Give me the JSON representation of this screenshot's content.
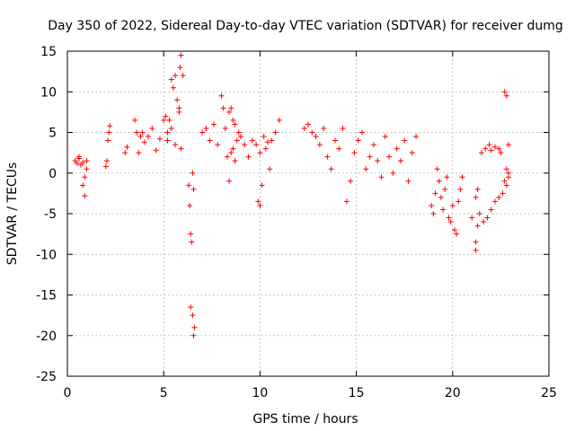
{
  "chart_data": {
    "type": "scatter",
    "title": "Day 350 of 2022, Sidereal Day-to-day VTEC variation (SDTVAR) for receiver dumg",
    "xlabel": "GPS time / hours",
    "ylabel": "SDTVAR / TECUs",
    "xlim": [
      0,
      25
    ],
    "ylim": [
      -25,
      15
    ],
    "xticks": [
      0,
      5,
      10,
      15,
      20,
      25
    ],
    "yticks": [
      15,
      10,
      5,
      0,
      -5,
      -10,
      -15,
      -20,
      -25
    ],
    "grid": true,
    "marker": "+",
    "series": [
      {
        "name": "SDTVAR",
        "color": "#ff0000",
        "x": [
          0.4,
          0.5,
          0.6,
          0.7,
          0.8,
          0.9,
          1.0,
          0.6,
          0.8,
          0.9,
          1.0,
          2.0,
          2.05,
          2.1,
          2.15,
          2.2,
          3.0,
          3.1,
          3.5,
          3.6,
          3.7,
          3.8,
          3.9,
          4.0,
          4.2,
          4.4,
          4.6,
          4.8,
          5.0,
          5.1,
          5.2,
          5.3,
          5.4,
          5.5,
          5.6,
          5.7,
          5.8,
          5.9,
          6.0,
          5.2,
          5.4,
          5.6,
          5.8,
          5.85,
          5.9,
          6.3,
          6.35,
          6.4,
          6.45,
          6.5,
          6.55,
          6.6,
          6.4,
          6.5,
          6.55,
          7.0,
          7.2,
          7.4,
          7.6,
          7.8,
          8.0,
          8.1,
          8.2,
          8.3,
          8.4,
          8.5,
          8.6,
          8.7,
          8.8,
          8.9,
          9.0,
          9.2,
          9.4,
          9.6,
          9.8,
          10.0,
          10.2,
          10.4,
          10.6,
          10.8,
          11.0,
          8.4,
          8.5,
          8.6,
          8.7,
          9.9,
          10.0,
          10.1,
          10.3,
          10.5,
          12.3,
          12.5,
          12.7,
          12.9,
          13.1,
          13.3,
          13.5,
          13.7,
          13.9,
          14.1,
          14.3,
          14.5,
          14.7,
          14.9,
          15.1,
          15.3,
          15.5,
          15.7,
          15.9,
          16.1,
          16.3,
          16.5,
          16.7,
          16.9,
          17.1,
          17.3,
          17.5,
          17.7,
          17.9,
          18.1,
          18.9,
          19.0,
          19.1,
          19.2,
          19.3,
          19.4,
          19.5,
          19.6,
          19.7,
          19.8,
          19.9,
          20.0,
          20.1,
          20.2,
          20.3,
          20.4,
          20.5,
          21.0,
          21.2,
          21.4,
          21.6,
          21.8,
          22.0,
          22.2,
          22.4,
          22.6,
          22.8,
          22.9,
          21.2,
          21.3,
          22.7,
          22.8,
          22.9,
          21.2,
          21.3,
          21.5,
          21.7,
          21.9,
          22.0,
          22.2,
          22.4,
          22.5,
          22.7,
          22.8,
          22.9
        ],
        "y": [
          1.5,
          1.2,
          1.8,
          1.0,
          1.3,
          -0.5,
          0.5,
          2.0,
          -1.5,
          -2.8,
          1.5,
          0.8,
          1.5,
          4.0,
          5.0,
          5.8,
          2.5,
          3.2,
          6.5,
          5.0,
          2.5,
          4.5,
          5.0,
          3.8,
          4.5,
          5.5,
          2.8,
          4.2,
          6.5,
          7.0,
          5.0,
          6.5,
          11.5,
          10.5,
          12.0,
          9.0,
          8.0,
          14.5,
          12.0,
          4.0,
          5.5,
          3.5,
          7.5,
          13.0,
          3.0,
          -1.5,
          -4.0,
          -7.5,
          -8.5,
          -17.5,
          -20.0,
          -19.0,
          -16.5,
          0.0,
          -2.0,
          5.0,
          5.5,
          4.0,
          6.0,
          3.5,
          9.5,
          8.0,
          5.5,
          2.0,
          -1.0,
          2.5,
          3.0,
          1.5,
          4.0,
          5.0,
          4.5,
          3.5,
          2.0,
          4.0,
          3.5,
          2.5,
          4.5,
          3.8,
          4.0,
          5.0,
          6.5,
          7.5,
          8.0,
          6.5,
          6.0,
          -3.5,
          -4.0,
          -1.5,
          3.0,
          0.5,
          5.5,
          6.0,
          5.0,
          4.5,
          3.5,
          5.5,
          2.0,
          0.5,
          4.0,
          3.0,
          5.5,
          -3.5,
          -1.0,
          2.5,
          4.0,
          5.0,
          0.5,
          2.0,
          3.5,
          1.5,
          -0.5,
          4.5,
          2.0,
          0.0,
          3.0,
          1.5,
          4.0,
          -1.0,
          2.5,
          4.5,
          -4.0,
          -5.0,
          -2.5,
          0.5,
          -1.0,
          -3.0,
          -4.5,
          -2.0,
          -0.5,
          -5.5,
          -6.0,
          -4.0,
          -7.0,
          -7.5,
          -3.5,
          -2.0,
          -0.5,
          -5.5,
          -8.5,
          -5.0,
          -6.0,
          -5.5,
          -4.5,
          -3.5,
          -3.0,
          -2.5,
          -1.5,
          -0.5,
          -9.5,
          -6.5,
          -1.0,
          0.5,
          0.0,
          -3.0,
          -2.0,
          2.5,
          3.0,
          3.5,
          2.8,
          3.2,
          3.0,
          2.5,
          10.0,
          9.5,
          3.5
        ]
      }
    ]
  }
}
